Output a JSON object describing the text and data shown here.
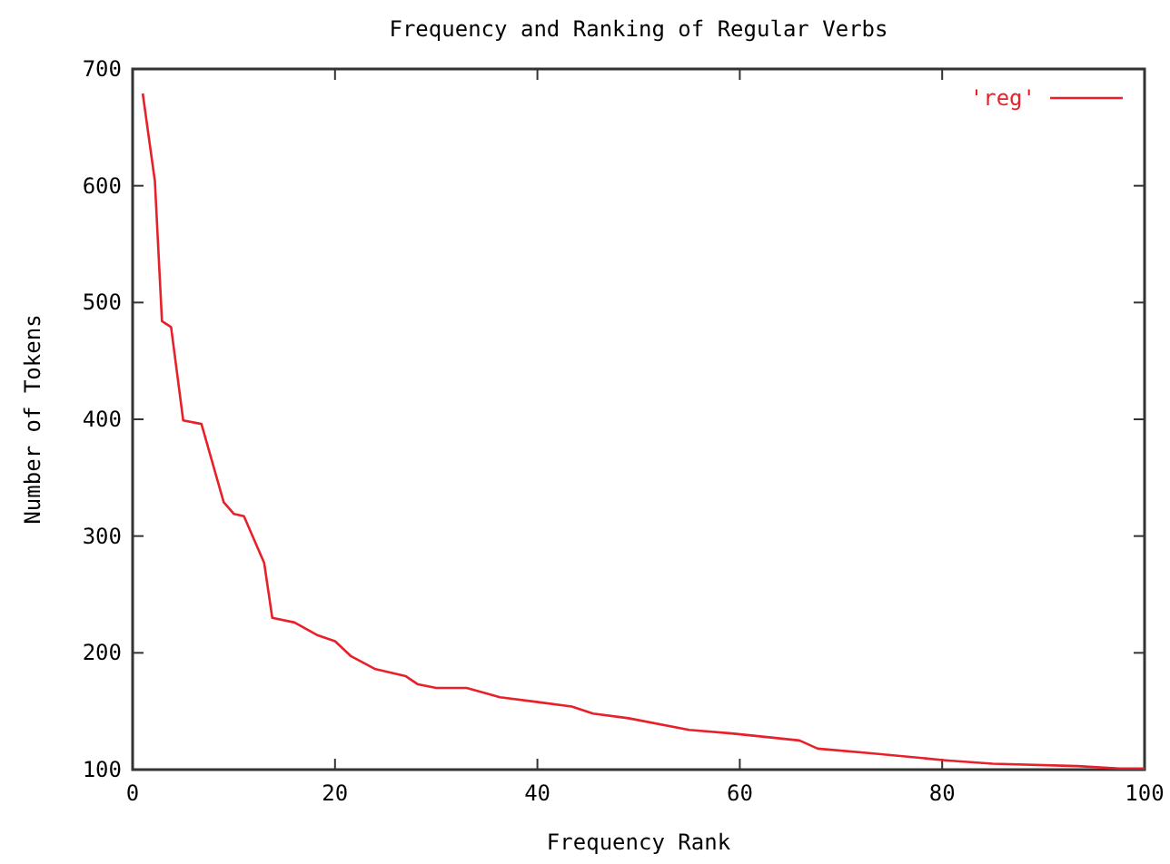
{
  "chart_data": {
    "type": "line",
    "title": "Frequency and Ranking of Regular Verbs",
    "xlabel": "Frequency Rank",
    "ylabel": "Number of Tokens",
    "series": [
      {
        "name": "'reg'",
        "color": "#e8202a",
        "x": [
          1,
          2.2,
          2.9,
          3.8,
          5,
          6.8,
          9,
          10,
          11,
          13,
          13.8,
          16,
          18.3,
          20,
          21.6,
          24,
          27,
          28.2,
          30,
          33,
          36.3,
          39.9,
          43.4,
          45.5,
          49,
          55,
          59.2,
          65.9,
          67.7,
          73,
          80.3,
          85,
          93.4,
          97.5,
          100
        ],
        "values": [
          679,
          604,
          484,
          479,
          399,
          396,
          329,
          319,
          317,
          277,
          230,
          226,
          215,
          210,
          197,
          186,
          180,
          173,
          170,
          170,
          162,
          158,
          154,
          148,
          144,
          134,
          131,
          125,
          118,
          114,
          108,
          105,
          103,
          101,
          101
        ]
      }
    ],
    "xlim": [
      0,
      100
    ],
    "xticks": [
      0,
      20,
      40,
      60,
      80,
      100
    ],
    "ylim": [
      100,
      700
    ],
    "yticks": [
      100,
      200,
      300,
      400,
      500,
      600,
      700
    ],
    "grid": false,
    "legend": "top right"
  }
}
